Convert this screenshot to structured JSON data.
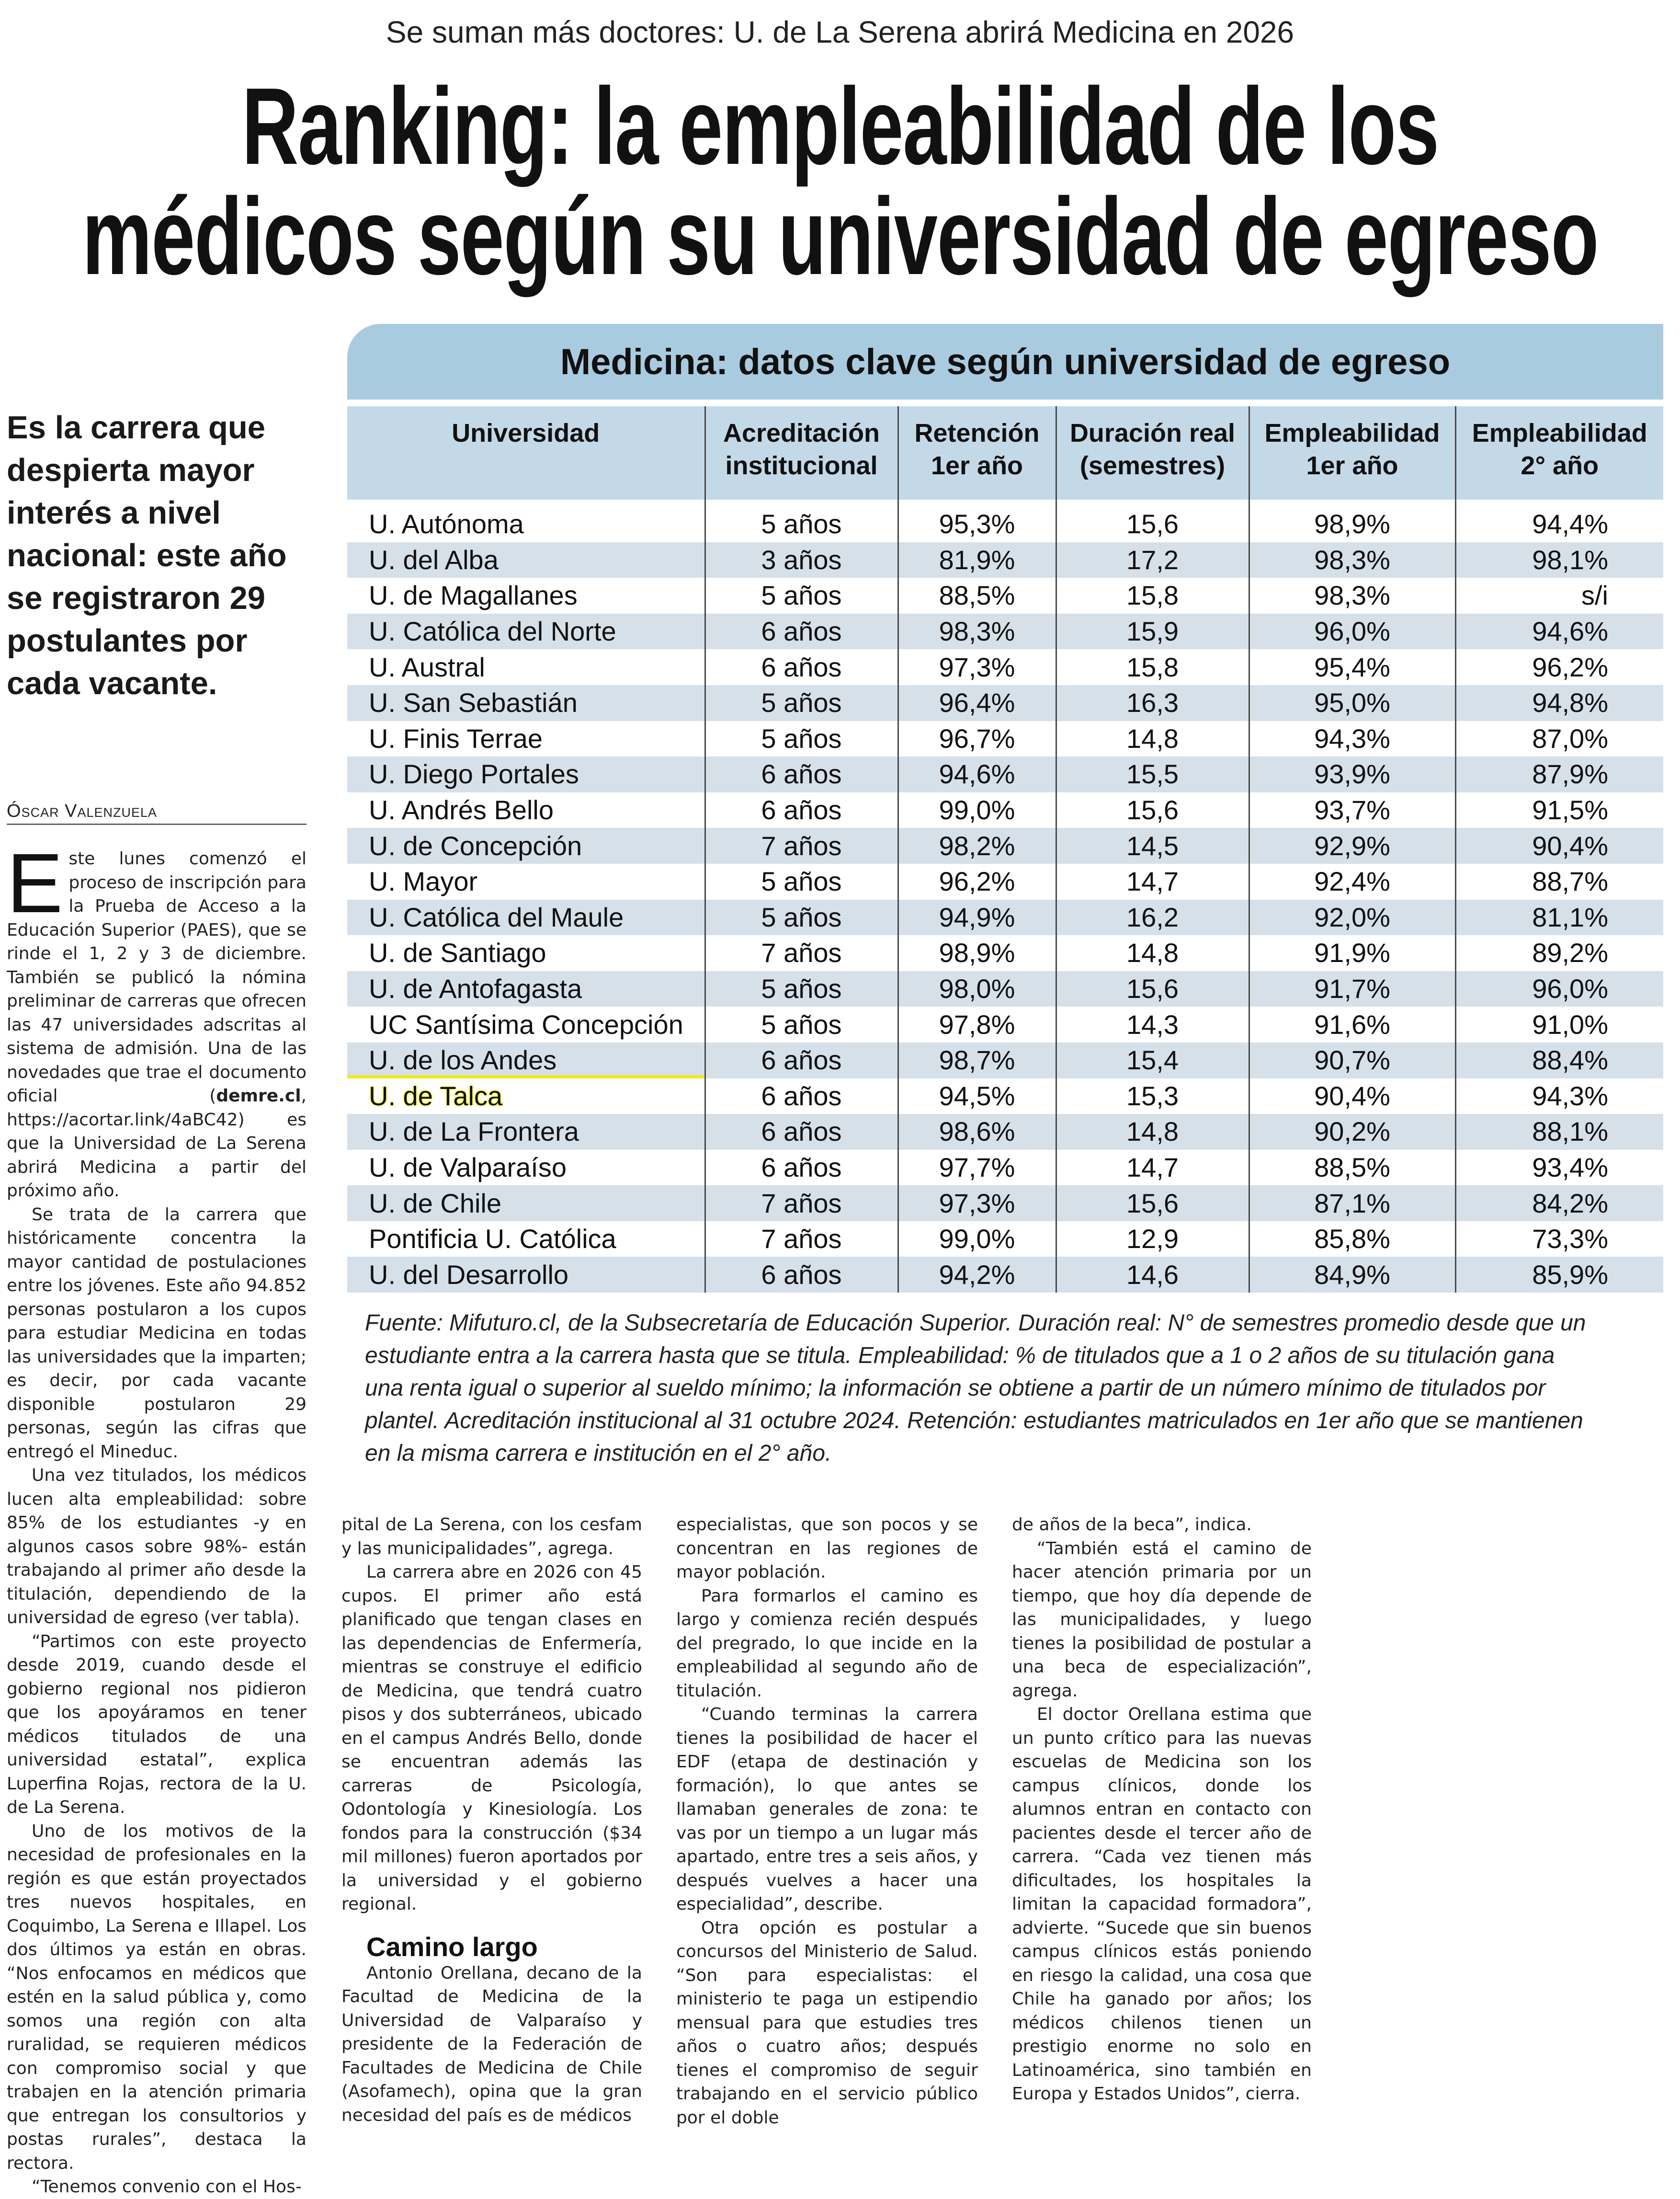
{
  "kicker": "Se suman más doctores: U. de La Serena abrirá Medicina en 2026",
  "headline": {
    "line1": "Ranking: la empleabilidad de los",
    "line2": "médicos según su universidad de egreso"
  },
  "deck": "Es la carrera que despierta mayor interés a nivel nacional: este año se registraron 29 postulantes por cada vacante.",
  "byline": "Óscar Valenzuela",
  "table": {
    "title": "Medicina: datos clave según universidad de egreso",
    "headers": [
      "Universidad",
      "Acreditación institucional",
      "Retención 1er año",
      "Duración real (semestres)",
      "Empleabilidad 1er año",
      "Empleabilidad 2° año"
    ],
    "highlight_color": "#f5f000",
    "highlighted_row": "U. de Talca",
    "rows": [
      [
        "U. Autónoma",
        "5 años",
        "95,3%",
        "15,6",
        "98,9%",
        "94,4%"
      ],
      [
        "U. del Alba",
        "3 años",
        "81,9%",
        "17,2",
        "98,3%",
        "98,1%"
      ],
      [
        "U. de Magallanes",
        "5 años",
        "88,5%",
        "15,8",
        "98,3%",
        "s/i"
      ],
      [
        "U. Católica del Norte",
        "6 años",
        "98,3%",
        "15,9",
        "96,0%",
        "94,6%"
      ],
      [
        "U. Austral",
        "6 años",
        "97,3%",
        "15,8",
        "95,4%",
        "96,2%"
      ],
      [
        "U. San Sebastián",
        "5 años",
        "96,4%",
        "16,3",
        "95,0%",
        "94,8%"
      ],
      [
        "U. Finis Terrae",
        "5 años",
        "96,7%",
        "14,8",
        "94,3%",
        "87,0%"
      ],
      [
        "U. Diego Portales",
        "6 años",
        "94,6%",
        "15,5",
        "93,9%",
        "87,9%"
      ],
      [
        "U. Andrés Bello",
        "6 años",
        "99,0%",
        "15,6",
        "93,7%",
        "91,5%"
      ],
      [
        "U. de Concepción",
        "7 años",
        "98,2%",
        "14,5",
        "92,9%",
        "90,4%"
      ],
      [
        "U. Mayor",
        "5 años",
        "96,2%",
        "14,7",
        "92,4%",
        "88,7%"
      ],
      [
        "U. Católica del Maule",
        "5 años",
        "94,9%",
        "16,2",
        "92,0%",
        "81,1%"
      ],
      [
        "U. de Santiago",
        "7 años",
        "98,9%",
        "14,8",
        "91,9%",
        "89,2%"
      ],
      [
        "U. de Antofagasta",
        "5 años",
        "98,0%",
        "15,6",
        "91,7%",
        "96,0%"
      ],
      [
        "UC Santísima Concepción",
        "5 años",
        "97,8%",
        "14,3",
        "91,6%",
        "91,0%"
      ],
      [
        "U. de los Andes",
        "6 años",
        "98,7%",
        "15,4",
        "90,7%",
        "88,4%"
      ],
      [
        "U. de Talca",
        "6 años",
        "94,5%",
        "15,3",
        "90,4%",
        "94,3%"
      ],
      [
        "U. de La Frontera",
        "6 años",
        "98,6%",
        "14,8",
        "90,2%",
        "88,1%"
      ],
      [
        "U. de Valparaíso",
        "6 años",
        "97,7%",
        "14,7",
        "88,5%",
        "93,4%"
      ],
      [
        "U. de Chile",
        "7 años",
        "97,3%",
        "15,6",
        "87,1%",
        "84,2%"
      ],
      [
        "Pontificia U. Católica",
        "7 años",
        "99,0%",
        "12,9",
        "85,8%",
        "73,3%"
      ],
      [
        "U. del Desarrollo",
        "6 años",
        "94,2%",
        "14,6",
        "84,9%",
        "85,9%"
      ]
    ]
  },
  "footnote": "Fuente: Mifuturo.cl, de la Subsecretaría de Educación Superior. Duración real: N° de semestres promedio desde que un estudiante entra a la carrera hasta que se titula. Empleabilidad: % de titulados que a 1 o 2 años de su titulación gana una renta igual o superior al sueldo mínimo; la información se obtiene a partir de un número mínimo de titulados por plantel. Acreditación institucional al 31 octubre 2024. Retención: estudiantes matriculados en 1er año que se mantienen en la misma carrera e institución en el 2° año.",
  "body": {
    "lead": {
      "dropcap": "E",
      "before_link": "ste lunes comenzó el proceso de inscripción para la Prueba de Acceso a la Educación Superior (PAES), que se rinde el 1, 2 y 3 de diciembre. También se publicó la nómina preliminar de carreras que ofrecen las 47 universidades adscritas al sistema de admisión. Una de las novedades que trae el documento oficial (",
      "link": "demre.cl",
      "after_link": ", https://acortar.link/4aBC42) es que la Universidad de La Serena abrirá Medicina a partir del próximo año."
    },
    "col1": [
      "Se trata de la carrera que históricamente concentra la mayor cantidad de postulaciones entre los jóvenes. Este año 94.852 personas postularon a los cupos para estudiar Medicina en todas las universidades que la imparten; es decir, por cada vacante disponible postularon 29 personas, según las cifras que entregó el Mineduc.",
      "Una vez titulados, los médicos lucen alta empleabilidad: sobre 85% de los estudiantes -y en algunos casos sobre 98%- están trabajando al primer año desde la titulación, dependiendo de la universidad de egreso (ver tabla).",
      "“Partimos con este proyecto desde 2019, cuando desde el gobierno regional nos pidieron que los apoyáramos en tener médicos titulados de una universidad estatal”, explica Luperfina Rojas, rectora de la U. de La Serena.",
      "Uno de los motivos de la necesidad de profesionales en la región es que están proyectados tres nuevos hospitales, en Coquimbo, La Serena e Illapel. Los dos últimos ya están en obras. “Nos enfocamos en médicos que estén en la salud pública y, como somos una región con alta ruralidad, se requieren médicos con compromiso social y que trabajen en la atención primaria que entregan los consultorios y postas rurales”, destaca la rectora.",
      "“Tenemos convenio con el Hos-"
    ],
    "col2": [
      "pital de La Serena, con los cesfam y las municipalidades”, agrega.",
      "La carrera abre en 2026 con 45 cupos. El primer año está planificado que tengan clases en las dependencias de Enfermería, mientras se construye el edificio de Medicina, que tendrá cuatro pisos y dos subterráneos, ubicado en el campus Andrés Bello, donde se encuentran además las carreras de Psicología, Odontología y Kinesiología. Los fondos para la construcción ($34 mil millones) fueron aportados por la universidad y el gobierno regional."
    ],
    "subhead": "Camino largo",
    "col2_after": [
      "Antonio Orellana, decano de la Facultad de Medicina de la Universidad de Valparaíso y presidente de la Federación de Facultades de Medicina de Chile (Asofamech), opina que la gran necesidad del país es de médicos"
    ],
    "col3": [
      "especialistas, que son pocos y se concentran en las regiones de mayor población.",
      "Para formarlos el camino es largo y comienza recién después del pregrado, lo que incide en la empleabilidad al segundo año de titulación.",
      "“Cuando terminas la carrera tienes la posibilidad de hacer el EDF (etapa de destinación y formación), lo que antes se llamaban generales de zona: te vas por un tiempo a un lugar más apartado, entre tres a seis años, y después vuelves a hacer una especialidad”, describe.",
      "Otra opción es postular a concursos del Ministerio de Salud. “Son para especialistas: el ministerio te paga un estipendio mensual para que estudies tres años o cuatro años; después tienes el compromiso de seguir trabajando en el servicio público por el doble"
    ],
    "col4": [
      "de años de la beca”, indica.",
      "“También está el camino de hacer atención primaria por un tiempo, que hoy día depende de las municipalidades, y luego tienes la posibilidad de postular a una beca de especialización”, agrega.",
      "El doctor Orellana estima que un punto crítico para las nuevas escuelas de Medicina son los campus clínicos, donde los alumnos entran en contacto con pacientes desde el tercer año de carrera. “Cada vez tienen más dificultades, los hospitales la limitan la capacidad formadora”, advierte. “Sucede que sin buenos campus clínicos estás poniendo en riesgo la calidad, una cosa que Chile ha ganado por años; los médicos chilenos tienen un prestigio enorme no solo en Latinoamérica, sino también en Europa y Estados Unidos”, cierra."
    ]
  }
}
